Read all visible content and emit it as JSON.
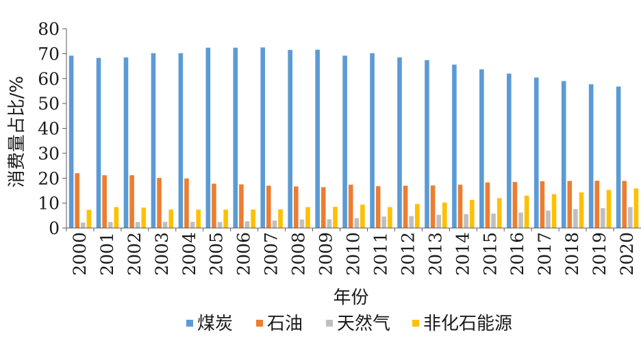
{
  "chart_data": {
    "type": "bar",
    "title": "",
    "xlabel": "年份",
    "ylabel": "消费量占比/%",
    "ylim": [
      0,
      80
    ],
    "yticks": [
      0,
      10,
      20,
      30,
      40,
      50,
      60,
      70,
      80
    ],
    "grid": false,
    "legend_position": "bottom",
    "categories": [
      "2000",
      "2001",
      "2002",
      "2003",
      "2004",
      "2005",
      "2006",
      "2007",
      "2008",
      "2009",
      "2010",
      "2011",
      "2012",
      "2013",
      "2014",
      "2015",
      "2016",
      "2017",
      "2018",
      "2019",
      "2020"
    ],
    "series": [
      {
        "name": "煤炭",
        "color": "#5b9bd5",
        "values": [
          69.2,
          68.3,
          68.5,
          70.2,
          70.2,
          72.4,
          72.4,
          72.5,
          71.5,
          71.6,
          69.2,
          70.2,
          68.5,
          67.4,
          65.6,
          63.7,
          62.0,
          60.4,
          59.0,
          57.7,
          56.8
        ]
      },
      {
        "name": "石油",
        "color": "#ed7d31",
        "values": [
          22.0,
          21.2,
          21.2,
          20.1,
          19.9,
          17.8,
          17.5,
          17.0,
          16.7,
          16.4,
          17.4,
          16.8,
          17.0,
          17.1,
          17.4,
          18.3,
          18.5,
          18.8,
          18.9,
          19.0,
          18.9
        ]
      },
      {
        "name": "天然气",
        "color": "#bfbfbf",
        "values": [
          2.2,
          2.4,
          2.4,
          2.5,
          2.5,
          2.4,
          2.7,
          3.0,
          3.4,
          3.5,
          4.0,
          4.6,
          4.8,
          5.3,
          5.6,
          5.8,
          6.2,
          7.0,
          7.6,
          8.0,
          8.4
        ]
      },
      {
        "name": "非化石能源",
        "color": "#ffc000",
        "values": [
          7.3,
          8.4,
          8.2,
          7.4,
          7.4,
          7.4,
          7.4,
          7.5,
          8.4,
          8.5,
          9.4,
          8.4,
          9.7,
          10.2,
          11.3,
          12.0,
          13.0,
          13.6,
          14.3,
          15.3,
          15.9
        ]
      }
    ]
  }
}
